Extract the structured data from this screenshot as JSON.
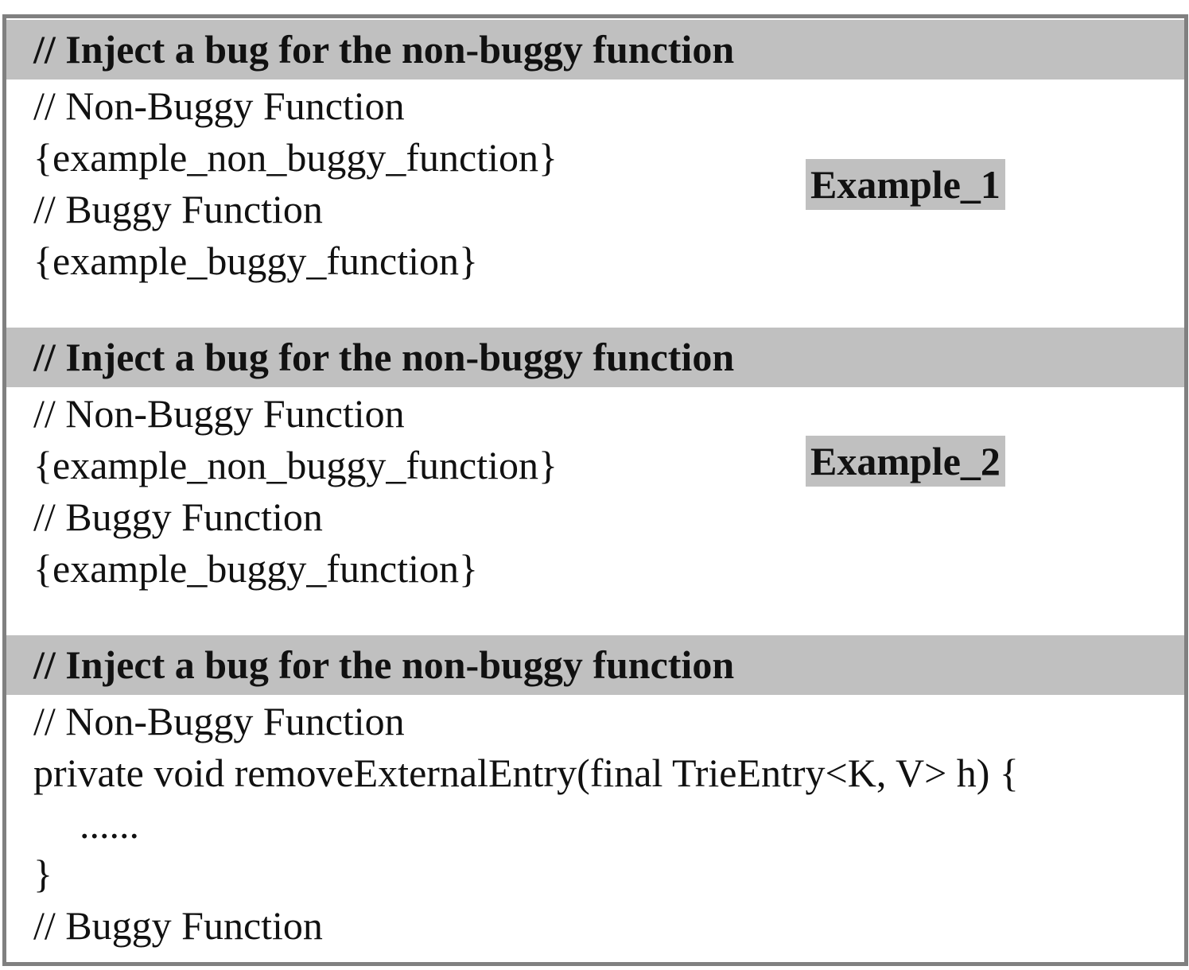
{
  "sections": [
    {
      "header": "// Inject a bug for the non-buggy function",
      "lines": [
        "// Non-Buggy Function",
        "{example_non_buggy_function}",
        "// Buggy Function",
        "{example_buggy_function}"
      ],
      "label": "Example_1"
    },
    {
      "header": "// Inject a bug for the non-buggy function",
      "lines": [
        "// Non-Buggy Function",
        "{example_non_buggy_function}",
        "// Buggy Function",
        "{example_buggy_function}"
      ],
      "label": "Example_2"
    },
    {
      "header": "// Inject a bug for the non-buggy function",
      "lines": [
        "// Non-Buggy Function",
        "private void removeExternalEntry(final TrieEntry<K, V> h) {",
        "......",
        "}",
        "// Buggy Function"
      ]
    }
  ]
}
